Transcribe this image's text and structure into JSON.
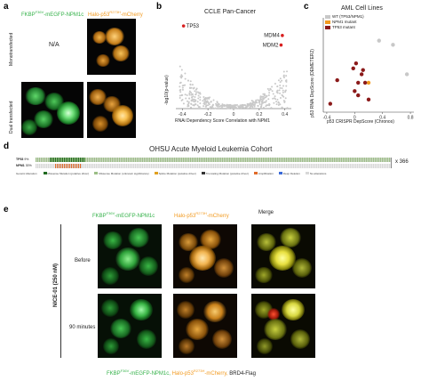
{
  "panel_a": {
    "letter": "a",
    "green_label_main": "FKBP",
    "green_label_sup": "F36V",
    "green_label_tail": "-mEGFP-NPM1c",
    "orange_label_main": "Halo-p53",
    "orange_label_sup": "R273H",
    "orange_label_tail": "-mCherry",
    "row1_label": "Monotransfected",
    "row2_label": "Dual transfected",
    "na_text": "N/A"
  },
  "panel_b": {
    "letter": "b",
    "title": "CCLE Pan-Cancer",
    "ylabel": "-log10(p-value)",
    "xlabel": "RNAi Dependency Score Correlation with NPM1",
    "xticks": [
      "-0.4",
      "-0.2",
      "0",
      "0.2",
      "0.4"
    ],
    "points": [
      {
        "label": "TP53",
        "x": -0.39,
        "y": 26
      },
      {
        "label": "MDM4",
        "x": 0.38,
        "y": 23
      },
      {
        "label": "MDM2",
        "x": 0.37,
        "y": 20
      }
    ]
  },
  "panel_c": {
    "letter": "c",
    "title": "AML Cell Lines",
    "ylabel": "p53 RNAi DepScore (DEMETER2)",
    "xlabel": "p53 CRISPR DepScore (Chronos)",
    "xticks": [
      "-0.4",
      "0",
      "0.4",
      "0.8"
    ],
    "legend": [
      {
        "label": "WT (TP53/NPM1)",
        "color": "#c8c8c8"
      },
      {
        "label": "NPM1 mutant",
        "color": "#f29a1f"
      },
      {
        "label": "TP53 mutant",
        "color": "#8b1a1a"
      }
    ],
    "points": [
      {
        "x": 0.35,
        "y": 0.55,
        "group": 0
      },
      {
        "x": 0.55,
        "y": 0.5,
        "group": 0
      },
      {
        "x": 0.75,
        "y": 0.15,
        "group": 0
      },
      {
        "x": 0.2,
        "y": 0.05,
        "group": 1
      },
      {
        "x": 0.12,
        "y": 0.2,
        "group": 2
      },
      {
        "x": 0.02,
        "y": 0.28,
        "group": 2
      },
      {
        "x": -0.02,
        "y": 0.22,
        "group": 2
      },
      {
        "x": 0.1,
        "y": 0.15,
        "group": 2
      },
      {
        "x": -0.25,
        "y": 0.08,
        "group": 2
      },
      {
        "x": 0.05,
        "y": 0.05,
        "group": 2
      },
      {
        "x": 0.15,
        "y": 0.05,
        "group": 2
      },
      {
        "x": 0.0,
        "y": -0.05,
        "group": 2
      },
      {
        "x": 0.05,
        "y": -0.1,
        "group": 2
      },
      {
        "x": 0.2,
        "y": -0.15,
        "group": 2
      },
      {
        "x": -0.35,
        "y": -0.2,
        "group": 2
      }
    ]
  },
  "panel_d": {
    "letter": "d",
    "title": "OHSU Acute Myeloid Leukemia Cohort",
    "row1": "TP53",
    "row2": "NPM1",
    "row1_pct": "9%",
    "row2_pct": "30%",
    "multiplier": "x 366",
    "legend_title": "Genetic Alteration",
    "legend_items": [
      "Missense Mutation (putative driver)",
      "Missense Mutation (unknown significance)",
      "Splice Mutation (putative driver)",
      "Truncating Mutation (putative driver)",
      "Amplification",
      "Deep Deletion",
      "No alterations"
    ]
  },
  "panel_e": {
    "letter": "e",
    "col1_main": "FKBP",
    "col1_sup": "F36V",
    "col1_tail": "-mEGFP-NPM1c",
    "col2_main": "Halo-p53",
    "col2_sup": "R273H",
    "col2_tail": "-mCherry",
    "col3": "Merge",
    "side_label": "NICE-01 (250 nM)",
    "row1": "Before",
    "row2": "90 minutes",
    "caption_green_main": "FKBP",
    "caption_green_sup": "F36V",
    "caption_green_tail": "-mEGFP-NPM1c,",
    "caption_orange_main": " Halo-p53",
    "caption_orange_sup": "R273H",
    "caption_orange_tail": "-mCherry,",
    "caption_black": " BRD4-Flag"
  }
}
